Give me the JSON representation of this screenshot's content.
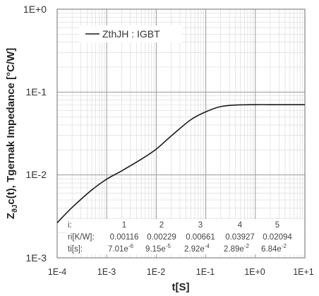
{
  "chart_data": {
    "type": "line",
    "title": "",
    "xlabel": "t[S]",
    "ylabel_parts": [
      "Z",
      "ϑJ",
      "c(t), Tgernak Impedance [°C/W]"
    ],
    "x_scale": "log",
    "y_scale": "log",
    "xlim": [
      0.0001,
      10
    ],
    "ylim": [
      0.001,
      1
    ],
    "x_ticks": [
      "1E-4",
      "1E-3",
      "1E-2",
      "1E-1",
      "1E+0",
      "1E+1"
    ],
    "y_ticks": [
      "1E-3",
      "1E-2",
      "1E-1",
      "1E+0"
    ],
    "grid": true,
    "legend_position": "top-left",
    "series": [
      {
        "name": "ZthJH : IGBT",
        "color": "#1a1a1a",
        "x": [
          0.0001,
          0.0002,
          0.0005,
          0.001,
          0.002,
          0.005,
          0.01,
          0.02,
          0.05,
          0.1,
          0.2,
          0.4,
          1,
          2,
          10
        ],
        "y": [
          0.00265,
          0.00405,
          0.0066,
          0.0089,
          0.0112,
          0.0155,
          0.0205,
          0.0295,
          0.0465,
          0.0578,
          0.0668,
          0.0698,
          0.0705,
          0.0705,
          0.0705
        ]
      }
    ],
    "param_table": {
      "header_label": "i:",
      "index": [
        "1",
        "2",
        "3",
        "4",
        "5"
      ],
      "rows": [
        {
          "label": "ri[K/W]:",
          "values": [
            "0.00116",
            "0.00229",
            "0.00661",
            "0.03927",
            "0.02094"
          ]
        },
        {
          "label": "ti[s]:",
          "mantissa": [
            "7.01e",
            "9.15e",
            "2.92e",
            "2.89e",
            "6.84e"
          ],
          "exponent": [
            "-6",
            "-5",
            "-4",
            "-2",
            "-2"
          ]
        }
      ]
    }
  }
}
